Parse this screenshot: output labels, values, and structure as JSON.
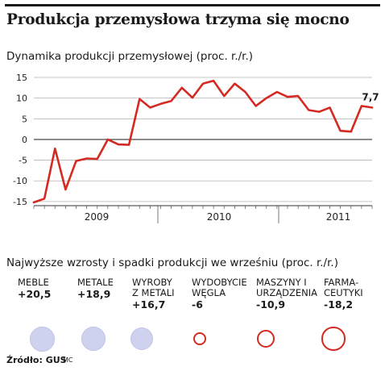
{
  "header": {
    "title": "Produkcja przemysłowa trzyma się mocno",
    "subtitle": "Dynamika produkcji przemysłowej (proc. r./r.)"
  },
  "chart_data": [
    {
      "type": "line",
      "title": "Dynamika produkcji przemysłowej (proc. r./r.)",
      "x_tick_labels": [
        "2009",
        "2010",
        "2011"
      ],
      "y_ticks": [
        15,
        10,
        5,
        0,
        -5,
        -10,
        -15
      ],
      "ylim": [
        -16,
        15
      ],
      "grid": true,
      "line_color": "#d42a22",
      "series": [
        {
          "values": [
            -15.2,
            -14.3,
            -2.2,
            -12.1,
            -5.2,
            -4.6,
            -4.7,
            0,
            -1.2,
            -1.3,
            9.8,
            7.7,
            8.6,
            9.3,
            12.5,
            10.1,
            13.5,
            14.2,
            10.5,
            13.5,
            11.5,
            8.1,
            10.0,
            11.5,
            10.3,
            10.5,
            7.1,
            6.7,
            7.7,
            2.1,
            1.9,
            8.1,
            7.7
          ]
        }
      ],
      "annotation": {
        "text": "7,7"
      }
    },
    {
      "type": "bubble",
      "title": "Najwyższe wzrosty i spadki produkcji we wrześniu (proc. r./r.)",
      "items": [
        {
          "name": "MEBLE",
          "value": "+20,5",
          "v": 20.5
        },
        {
          "name": "METALE",
          "value": "+18,9",
          "v": 18.9
        },
        {
          "name": "WYROBY Z METALI",
          "value": "+16,7",
          "v": 16.7
        },
        {
          "name": "WYDOBYCIE WĘGLA",
          "value": "-6",
          "v": -6
        },
        {
          "name": "MASZYNY I URZĄDZENIA",
          "value": "-10,9",
          "v": -10.9
        },
        {
          "name": "FARMA-CEUTYKI",
          "value": "-18,2",
          "v": -18.2
        }
      ],
      "colors": {
        "increase": "#cfd2ee",
        "decrease": "#d42a22"
      }
    }
  ],
  "subtitle2": "Najwyższe wzrosty i spadki produkcji we wrześniu (proc. r./r.)",
  "categories": [
    {
      "line1": "MEBLE",
      "line2": "",
      "value": "+20,5"
    },
    {
      "line1": "METALE",
      "line2": "",
      "value": "+18,9"
    },
    {
      "line1": "WYROBY",
      "line2": "Z METALI",
      "value": "+16,7"
    },
    {
      "line1": "WYDOBYCIE",
      "line2": "WĘGLA",
      "value": "-6"
    },
    {
      "line1": "MASZYNY I",
      "line2": "URZĄDZENIA",
      "value": "-10,9"
    },
    {
      "line1": "FARMA-",
      "line2": "CEUTYKI",
      "value": "-18,2"
    }
  ],
  "footer": {
    "source": "Źródło: GUS",
    "author": "MC"
  }
}
